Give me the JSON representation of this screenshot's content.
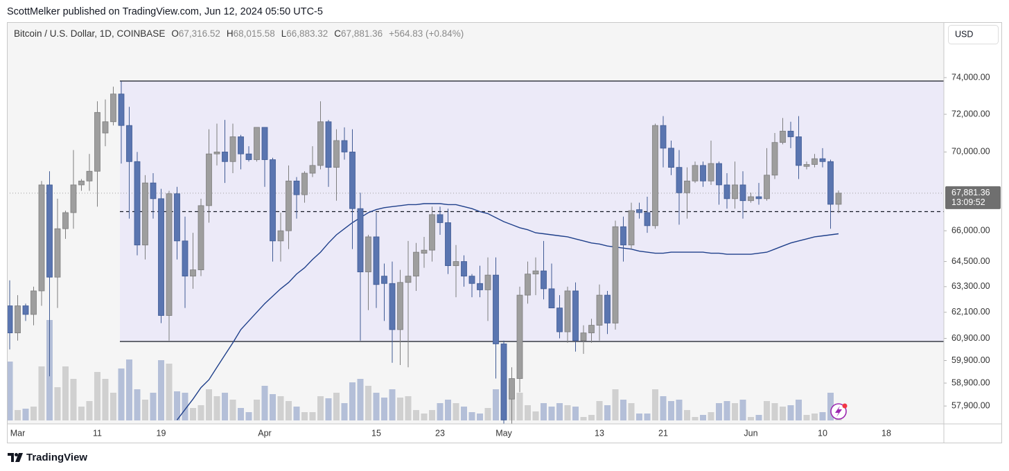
{
  "page": {
    "publisher": "ScottMelker published on TradingView.com, Jun 12, 2024 05:50 UTC-5",
    "brand": "TradingView",
    "currency": "USD"
  },
  "header": {
    "symbol": "Bitcoin / U.S. Dollar, 1D, COINBASE",
    "ohlc": [
      {
        "key": "O",
        "text": "67,316.52"
      },
      {
        "key": "H",
        "text": "68,015.58"
      },
      {
        "key": "L",
        "text": "66,883.32"
      },
      {
        "key": "C",
        "text": "67,881.36"
      }
    ],
    "change": "+564.83 (+0.84%)"
  },
  "chart_data": {
    "type": "candlestick",
    "yscale": "log",
    "grid": false,
    "up_color": "#9e9e9e",
    "down_color": "#5a75b0",
    "ma_color": "#1e3f8a",
    "box_color": "#eceaf8",
    "ylim": [
      57190,
      77210
    ],
    "yticks": [
      {
        "value": 74000,
        "label": "74,000.00"
      },
      {
        "value": 72000,
        "label": "72,000.00"
      },
      {
        "value": 70000,
        "label": "70,000.00"
      },
      {
        "value": 66000,
        "label": "66,000.00"
      },
      {
        "value": 64500,
        "label": "64,500.00"
      },
      {
        "value": 63300,
        "label": "63,300.00"
      },
      {
        "value": 62100,
        "label": "62,100.00"
      },
      {
        "value": 60900,
        "label": "60,900.00"
      },
      {
        "value": 59900,
        "label": "59,900.00"
      },
      {
        "value": 58900,
        "label": "58,900.00"
      },
      {
        "value": 57900,
        "label": "57,900.00"
      }
    ],
    "range_top": 73810,
    "range_bottom": 60760,
    "dashed_level": 66950,
    "last_price": {
      "value": 67881.36,
      "label": "67,881.36"
    },
    "countdown": "13:09:52",
    "categories": [
      null,
      "Mar",
      null,
      null,
      null,
      null,
      null,
      null,
      null,
      null,
      null,
      "11",
      null,
      null,
      null,
      null,
      null,
      null,
      null,
      "19",
      null,
      null,
      null,
      null,
      null,
      null,
      null,
      null,
      null,
      null,
      null,
      null,
      "Apr",
      null,
      null,
      null,
      null,
      null,
      null,
      null,
      null,
      null,
      null,
      null,
      null,
      null,
      "15",
      null,
      null,
      null,
      null,
      null,
      null,
      null,
      "23",
      null,
      null,
      null,
      null,
      null,
      null,
      null,
      "May",
      null,
      null,
      null,
      null,
      null,
      null,
      null,
      null,
      null,
      null,
      null,
      "13",
      null,
      null,
      null,
      null,
      null,
      null,
      null,
      "21",
      null,
      null,
      null,
      null,
      null,
      null,
      null,
      null,
      null,
      null,
      "Jun",
      null,
      null,
      null,
      null,
      null,
      null,
      null,
      null,
      "10",
      null,
      null,
      null,
      null,
      null,
      null,
      null,
      "18"
    ],
    "open": [
      62400,
      61150,
      62400,
      62000,
      63100,
      68300,
      63750,
      66100,
      66900,
      68300,
      68500,
      69000,
      71000,
      71600,
      73100,
      71400,
      69500,
      65300,
      68400,
      67600,
      61950,
      67850,
      65500,
      63800,
      64100,
      67250,
      69900,
      70000,
      69500,
      70800,
      69900,
      69600,
      71300,
      69600,
      65500,
      66000,
      68500,
      67800,
      68900,
      69300,
      71600,
      69200,
      70600,
      70000,
      67100,
      64000,
      65700,
      63800,
      63450,
      61300,
      63500,
      63800,
      64900,
      65050,
      66800,
      66400,
      64300,
      64500,
      63800,
      63450,
      63150,
      63850,
      60650,
      58200,
      59100,
      62900,
      63900,
      64050,
      63200,
      62300,
      61200,
      63100,
      60800,
      61150,
      61500,
      62900,
      61600,
      66200,
      65300,
      67050,
      66900,
      66250,
      71400,
      70200,
      69200,
      67900,
      68500,
      69300,
      68500,
      69400,
      68300,
      67600,
      68300,
      67500,
      67700,
      67600,
      68800,
      70500,
      71100,
      70800,
      69250,
      69350,
      69650,
      69500,
      67316.52,
      null,
      null,
      null,
      null,
      null,
      null
    ],
    "high": [
      63600,
      62900,
      62500,
      63300,
      68500,
      69000,
      67600,
      67000,
      70100,
      68600,
      69900,
      72700,
      72800,
      73500,
      73800,
      72400,
      70000,
      68800,
      68900,
      68100,
      68000,
      68200,
      66700,
      65900,
      67600,
      71200,
      71500,
      71700,
      71500,
      70900,
      70300,
      71300,
      71300,
      69700,
      66900,
      69300,
      68700,
      69000,
      70300,
      72700,
      71700,
      71200,
      71300,
      71200,
      67900,
      65800,
      66900,
      64400,
      64500,
      64100,
      65500,
      65400,
      65700,
      67200,
      67200,
      67100,
      65300,
      64800,
      63900,
      64300,
      64700,
      64700,
      60800,
      59600,
      63300,
      64500,
      64700,
      65500,
      64400,
      62900,
      63300,
      63500,
      61500,
      61800,
      63400,
      63100,
      66500,
      66700,
      67400,
      67400,
      67700,
      71500,
      71900,
      70600,
      70100,
      69200,
      69500,
      69500,
      70600,
      69500,
      68900,
      69500,
      69000,
      67900,
      68400,
      70200,
      71000,
      71800,
      71600,
      71900,
      69500,
      69900,
      70200,
      69600,
      68015.58,
      null,
      null,
      null,
      null,
      null,
      null
    ],
    "low": [
      60400,
      60800,
      61700,
      61500,
      62400,
      59200,
      62300,
      65600,
      66100,
      68000,
      68000,
      67200,
      70300,
      71400,
      69400,
      66600,
      64800,
      64600,
      66600,
      61600,
      60800,
      64600,
      62300,
      63200,
      63800,
      66400,
      69300,
      68400,
      68900,
      69100,
      69500,
      69500,
      68200,
      64500,
      64500,
      65100,
      66600,
      67400,
      68700,
      69100,
      68200,
      67500,
      69600,
      65100,
      60800,
      62200,
      62300,
      61700,
      59800,
      59700,
      59600,
      63100,
      64200,
      64500,
      65800,
      63900,
      62800,
      63300,
      62800,
      62800,
      61700,
      59100,
      56600,
      56900,
      58500,
      62500,
      62900,
      62700,
      62300,
      60900,
      60700,
      60300,
      60200,
      60700,
      60800,
      61100,
      61300,
      64500,
      65100,
      66600,
      65900,
      66100,
      69200,
      68800,
      66300,
      66600,
      68400,
      68200,
      68300,
      67300,
      67100,
      67100,
      66600,
      67400,
      67300,
      67500,
      68600,
      70400,
      70200,
      68600,
      69100,
      69200,
      69200,
      66100,
      66883.32,
      null,
      null,
      null,
      null,
      null,
      null
    ],
    "close": [
      61150,
      62400,
      62000,
      63100,
      68300,
      63750,
      66100,
      66900,
      68300,
      68500,
      69000,
      72100,
      71600,
      73100,
      71400,
      69500,
      65300,
      68400,
      67600,
      61950,
      67850,
      65500,
      63800,
      64100,
      67250,
      69900,
      70000,
      69500,
      70800,
      69900,
      69600,
      71300,
      69600,
      65500,
      66000,
      68500,
      67800,
      68900,
      69300,
      71600,
      69200,
      70600,
      70000,
      67100,
      64000,
      65700,
      63400,
      63450,
      61300,
      63500,
      63800,
      64950,
      65050,
      66800,
      66400,
      64300,
      64500,
      63800,
      63450,
      63150,
      63850,
      60650,
      57300,
      59100,
      62900,
      63900,
      64050,
      63200,
      62300,
      61200,
      63100,
      60800,
      61150,
      61500,
      62900,
      61600,
      66200,
      65300,
      67000,
      66900,
      66250,
      71400,
      70200,
      69200,
      67900,
      68500,
      69300,
      68500,
      69400,
      68300,
      67600,
      68300,
      67500,
      67700,
      67600,
      68800,
      70500,
      71100,
      70800,
      69300,
      69350,
      69650,
      69500,
      67316.52,
      67881.36,
      null,
      null,
      null,
      null,
      null,
      null
    ],
    "volume": [
      85,
      15,
      17,
      20,
      78,
      145,
      48,
      78,
      60,
      20,
      28,
      70,
      60,
      40,
      75,
      88,
      45,
      30,
      40,
      87,
      82,
      42,
      40,
      18,
      22,
      45,
      35,
      40,
      30,
      18,
      12,
      30,
      50,
      38,
      35,
      28,
      20,
      12,
      12,
      35,
      32,
      40,
      25,
      55,
      60,
      50,
      40,
      33,
      45,
      33,
      35,
      15,
      10,
      15,
      25,
      30,
      25,
      20,
      12,
      10,
      18,
      45,
      60,
      50,
      40,
      22,
      13,
      25,
      20,
      25,
      22,
      20,
      5,
      8,
      28,
      22,
      45,
      30,
      25,
      10,
      10,
      45,
      35,
      28,
      30,
      15,
      5,
      8,
      12,
      25,
      28,
      25,
      30,
      5,
      8,
      28,
      25,
      20,
      22,
      30,
      8,
      10,
      12,
      40,
      20,
      null,
      null,
      null,
      null,
      null,
      null
    ],
    "ma": [
      null,
      null,
      null,
      null,
      null,
      null,
      null,
      null,
      null,
      null,
      null,
      null,
      null,
      null,
      null,
      null,
      null,
      null,
      null,
      null,
      null,
      57300,
      57750,
      58200,
      58700,
      59050,
      59600,
      60150,
      60700,
      61300,
      61700,
      62100,
      62500,
      62850,
      63200,
      63500,
      63900,
      64200,
      64600,
      64950,
      65400,
      65800,
      66100,
      66400,
      66650,
      66900,
      67050,
      67150,
      67200,
      67250,
      67300,
      67300,
      67350,
      67350,
      67350,
      67300,
      67300,
      67200,
      67100,
      66950,
      66850,
      66650,
      66450,
      66300,
      66150,
      66050,
      65900,
      65850,
      65800,
      65750,
      65700,
      65600,
      65500,
      65400,
      65350,
      65250,
      65200,
      65150,
      65100,
      65000,
      64950,
      64900,
      64900,
      64950,
      64950,
      64950,
      64950,
      64950,
      64900,
      64900,
      64850,
      64850,
      64850,
      64850,
      64900,
      64950,
      65100,
      65250,
      65400,
      65500,
      65600,
      65700,
      65750,
      65800,
      65850,
      null,
      null,
      null,
      null,
      null,
      null
    ]
  }
}
